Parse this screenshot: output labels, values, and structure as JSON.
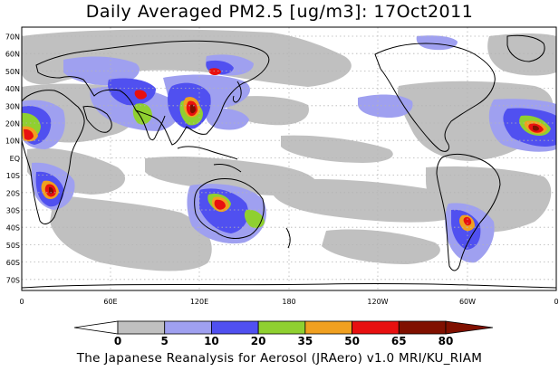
{
  "title": "Daily Averaged PM2.5 [ug/m3]: 17Oct2011",
  "footer": "The Japanese Reanalysis for Aerosol (JRAero) v1.0 MRI/KU_RIAM",
  "map": {
    "lat_labels": [
      "70N",
      "60N",
      "50N",
      "40N",
      "30N",
      "20N",
      "10N",
      "EQ",
      "10S",
      "20S",
      "30S",
      "40S",
      "50S",
      "60S",
      "70S"
    ],
    "lon_labels": [
      "0",
      "60E",
      "120E",
      "180",
      "120W",
      "60W",
      "0"
    ]
  },
  "colorbar": {
    "levels": [
      "0",
      "5",
      "10",
      "20",
      "35",
      "50",
      "65",
      "80"
    ],
    "colors": [
      "#ffffff",
      "#c0c0c0",
      "#9fa0f0",
      "#5050f0",
      "#8fd030",
      "#f0a020",
      "#e81010",
      "#801000"
    ]
  },
  "colors": {
    "coast": "#000000",
    "grid": "#b4b4b4"
  }
}
